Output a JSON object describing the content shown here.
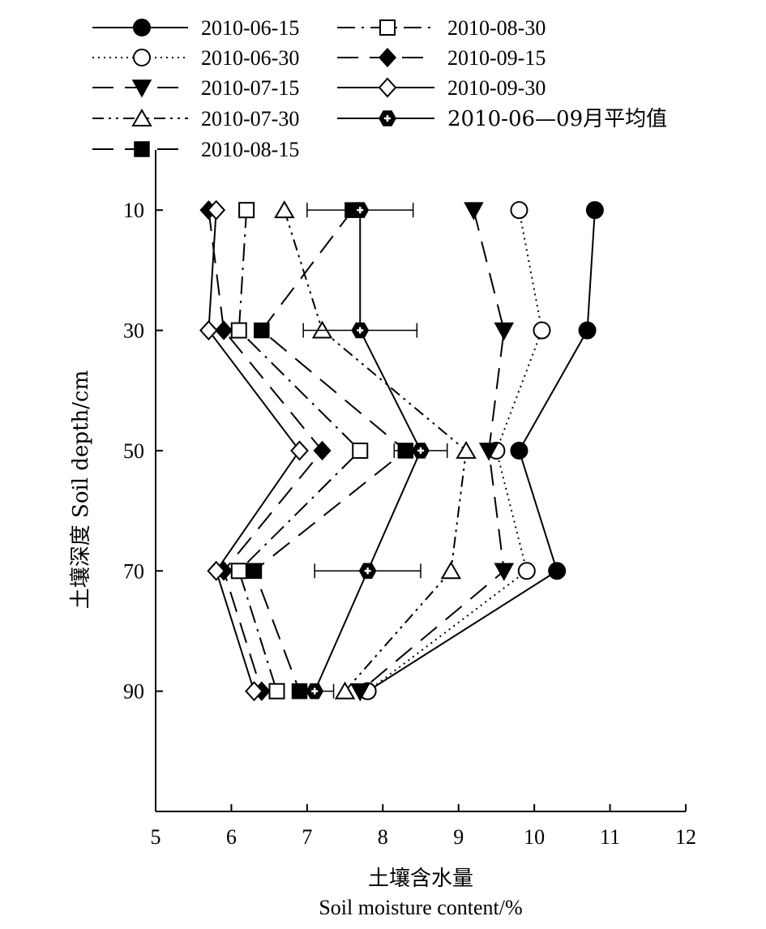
{
  "chart_data": {
    "type": "line",
    "orientation": "depth-profile",
    "xlabel_cn": "土壤含水量",
    "xlabel_en": "Soil moisture content/%",
    "ylabel": "土壤深度 Soil depth/cm",
    "xlim": [
      5,
      12
    ],
    "ylim": [
      110,
      0
    ],
    "x_ticks": [
      5,
      6,
      7,
      8,
      9,
      10,
      11,
      12
    ],
    "y_ticks": [
      10,
      30,
      50,
      70,
      90
    ],
    "depths": [
      10,
      30,
      50,
      70,
      90
    ],
    "legend_position": "top",
    "series": [
      {
        "name": "2010-06-15",
        "marker": "filled-circle",
        "dash": "solid",
        "values": [
          10.8,
          10.7,
          9.8,
          10.3,
          7.8
        ]
      },
      {
        "name": "2010-06-30",
        "marker": "open-circle",
        "dash": "dotted",
        "values": [
          9.8,
          10.1,
          9.5,
          9.9,
          7.8
        ]
      },
      {
        "name": "2010-07-15",
        "marker": "filled-triangle-down",
        "dash": "long-dash",
        "values": [
          9.2,
          9.6,
          9.4,
          9.6,
          7.7
        ]
      },
      {
        "name": "2010-07-30",
        "marker": "open-triangle-up",
        "dash": "dash-dot-dot",
        "values": [
          6.7,
          7.2,
          9.1,
          8.9,
          7.5
        ]
      },
      {
        "name": "2010-08-15",
        "marker": "filled-square",
        "dash": "long-dash",
        "values": [
          7.6,
          6.4,
          8.3,
          6.3,
          6.9
        ]
      },
      {
        "name": "2010-08-30",
        "marker": "open-square",
        "dash": "dash-dot",
        "values": [
          6.2,
          6.1,
          7.7,
          6.1,
          6.6
        ]
      },
      {
        "name": "2010-09-15",
        "marker": "filled-diamond",
        "dash": "long-dash",
        "values": [
          5.7,
          5.9,
          7.2,
          5.9,
          6.4
        ]
      },
      {
        "name": "2010-09-30",
        "marker": "open-diamond",
        "dash": "solid",
        "values": [
          5.8,
          5.7,
          6.9,
          5.8,
          6.3
        ]
      },
      {
        "name": "2010-06—09月平均值",
        "marker": "hexagon-cross",
        "dash": "solid",
        "values": [
          7.7,
          7.7,
          8.5,
          7.8,
          7.1
        ],
        "error": [
          0.7,
          0.75,
          0.35,
          0.7,
          0.25
        ]
      }
    ]
  }
}
